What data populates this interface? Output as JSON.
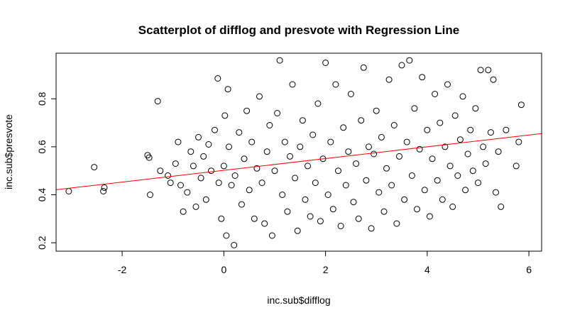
{
  "chart_data": {
    "type": "scatter",
    "title": "Scatterplot of difflog and presvote with Regression Line",
    "xlabel": "inc.sub$difflog",
    "ylabel": "inc.sub$presvote",
    "xlim": [
      -3.3,
      6.25
    ],
    "ylim": [
      0.165,
      0.99
    ],
    "x_ticks": [
      -2,
      0,
      2,
      4,
      6
    ],
    "y_ticks": [
      0.2,
      0.4,
      0.6,
      0.8
    ],
    "x_tick_labels": [
      "-2",
      "0",
      "2",
      "4",
      "6"
    ],
    "y_tick_labels": [
      "0.2",
      "0.4",
      "0.6",
      "0.8"
    ],
    "point_style": "open-circle",
    "point_color": "#000000",
    "regression_line": {
      "intercept": 0.502,
      "slope": 0.0245,
      "color": "#ff0000"
    },
    "grid": false,
    "legend": "none",
    "series": [
      {
        "values": [
          [
            -3.05,
            0.415
          ],
          [
            -2.55,
            0.515
          ],
          [
            -2.35,
            0.43
          ],
          [
            -2.37,
            0.415
          ],
          [
            -1.5,
            0.565
          ],
          [
            -1.47,
            0.555
          ],
          [
            -1.45,
            0.4
          ],
          [
            -1.3,
            0.79
          ],
          [
            -1.25,
            0.5
          ],
          [
            -1.1,
            0.48
          ],
          [
            -1.05,
            0.45
          ],
          [
            -0.95,
            0.53
          ],
          [
            -0.9,
            0.62
          ],
          [
            -0.85,
            0.44
          ],
          [
            -0.8,
            0.33
          ],
          [
            -0.72,
            0.41
          ],
          [
            -0.65,
            0.58
          ],
          [
            -0.6,
            0.52
          ],
          [
            -0.55,
            0.35
          ],
          [
            -0.5,
            0.64
          ],
          [
            -0.45,
            0.47
          ],
          [
            -0.4,
            0.56
          ],
          [
            -0.35,
            0.38
          ],
          [
            -0.3,
            0.61
          ],
          [
            -0.25,
            0.5
          ],
          [
            -0.18,
            0.67
          ],
          [
            -0.12,
            0.885
          ],
          [
            -0.1,
            0.45
          ],
          [
            -0.05,
            0.3
          ],
          [
            0.0,
            0.52
          ],
          [
            0.02,
            0.73
          ],
          [
            0.05,
            0.23
          ],
          [
            0.08,
            0.84
          ],
          [
            0.1,
            0.6
          ],
          [
            0.15,
            0.44
          ],
          [
            0.2,
            0.19
          ],
          [
            0.22,
            0.48
          ],
          [
            0.3,
            0.66
          ],
          [
            0.35,
            0.36
          ],
          [
            0.4,
            0.55
          ],
          [
            0.45,
            0.75
          ],
          [
            0.5,
            0.42
          ],
          [
            0.55,
            0.62
          ],
          [
            0.6,
            0.3
          ],
          [
            0.65,
            0.51
          ],
          [
            0.7,
            0.81
          ],
          [
            0.75,
            0.45
          ],
          [
            0.8,
            0.28
          ],
          [
            0.85,
            0.58
          ],
          [
            0.9,
            0.69
          ],
          [
            0.95,
            0.23
          ],
          [
            1.0,
            0.5
          ],
          [
            1.05,
            0.74
          ],
          [
            1.1,
            0.96
          ],
          [
            1.15,
            0.4
          ],
          [
            1.2,
            0.62
          ],
          [
            1.25,
            0.33
          ],
          [
            1.3,
            0.56
          ],
          [
            1.35,
            0.86
          ],
          [
            1.4,
            0.47
          ],
          [
            1.45,
            0.25
          ],
          [
            1.5,
            0.6
          ],
          [
            1.55,
            0.71
          ],
          [
            1.6,
            0.38
          ],
          [
            1.65,
            0.52
          ],
          [
            1.7,
            0.31
          ],
          [
            1.75,
            0.65
          ],
          [
            1.8,
            0.45
          ],
          [
            1.85,
            0.78
          ],
          [
            1.9,
            0.29
          ],
          [
            1.95,
            0.55
          ],
          [
            2.0,
            0.95
          ],
          [
            2.05,
            0.4
          ],
          [
            2.1,
            0.62
          ],
          [
            2.15,
            0.34
          ],
          [
            2.2,
            0.86
          ],
          [
            2.25,
            0.5
          ],
          [
            2.3,
            0.27
          ],
          [
            2.35,
            0.68
          ],
          [
            2.4,
            0.44
          ],
          [
            2.45,
            0.58
          ],
          [
            2.5,
            0.82
          ],
          [
            2.55,
            0.37
          ],
          [
            2.6,
            0.53
          ],
          [
            2.65,
            0.3
          ],
          [
            2.7,
            0.71
          ],
          [
            2.75,
            0.93
          ],
          [
            2.8,
            0.46
          ],
          [
            2.85,
            0.6
          ],
          [
            2.9,
            0.26
          ],
          [
            2.95,
            0.57
          ],
          [
            3.0,
            0.75
          ],
          [
            3.05,
            0.41
          ],
          [
            3.1,
            0.64
          ],
          [
            3.15,
            0.33
          ],
          [
            3.2,
            0.51
          ],
          [
            3.25,
            0.88
          ],
          [
            3.3,
            0.44
          ],
          [
            3.35,
            0.69
          ],
          [
            3.4,
            0.28
          ],
          [
            3.45,
            0.56
          ],
          [
            3.5,
            0.94
          ],
          [
            3.55,
            0.38
          ],
          [
            3.6,
            0.62
          ],
          [
            3.65,
            0.96
          ],
          [
            3.7,
            0.48
          ],
          [
            3.75,
            0.76
          ],
          [
            3.8,
            0.34
          ],
          [
            3.85,
            0.59
          ],
          [
            3.9,
            0.89
          ],
          [
            3.95,
            0.42
          ],
          [
            4.0,
            0.67
          ],
          [
            4.05,
            0.31
          ],
          [
            4.1,
            0.55
          ],
          [
            4.15,
            0.82
          ],
          [
            4.2,
            0.46
          ],
          [
            4.25,
            0.7
          ],
          [
            4.3,
            0.38
          ],
          [
            4.35,
            0.6
          ],
          [
            4.4,
            0.86
          ],
          [
            4.45,
            0.52
          ],
          [
            4.5,
            0.35
          ],
          [
            4.55,
            0.73
          ],
          [
            4.6,
            0.48
          ],
          [
            4.65,
            0.63
          ],
          [
            4.7,
            0.81
          ],
          [
            4.75,
            0.42
          ],
          [
            4.8,
            0.57
          ],
          [
            4.85,
            0.67
          ],
          [
            4.9,
            0.5
          ],
          [
            4.95,
            0.76
          ],
          [
            5.0,
            0.45
          ],
          [
            5.05,
            0.92
          ],
          [
            5.1,
            0.6
          ],
          [
            5.15,
            0.53
          ],
          [
            5.2,
            0.92
          ],
          [
            5.25,
            0.66
          ],
          [
            5.3,
            0.88
          ],
          [
            5.35,
            0.41
          ],
          [
            5.4,
            0.58
          ],
          [
            5.45,
            0.35
          ],
          [
            5.55,
            0.67
          ],
          [
            5.75,
            0.52
          ],
          [
            5.8,
            0.62
          ],
          [
            5.85,
            0.775
          ]
        ]
      }
    ]
  }
}
